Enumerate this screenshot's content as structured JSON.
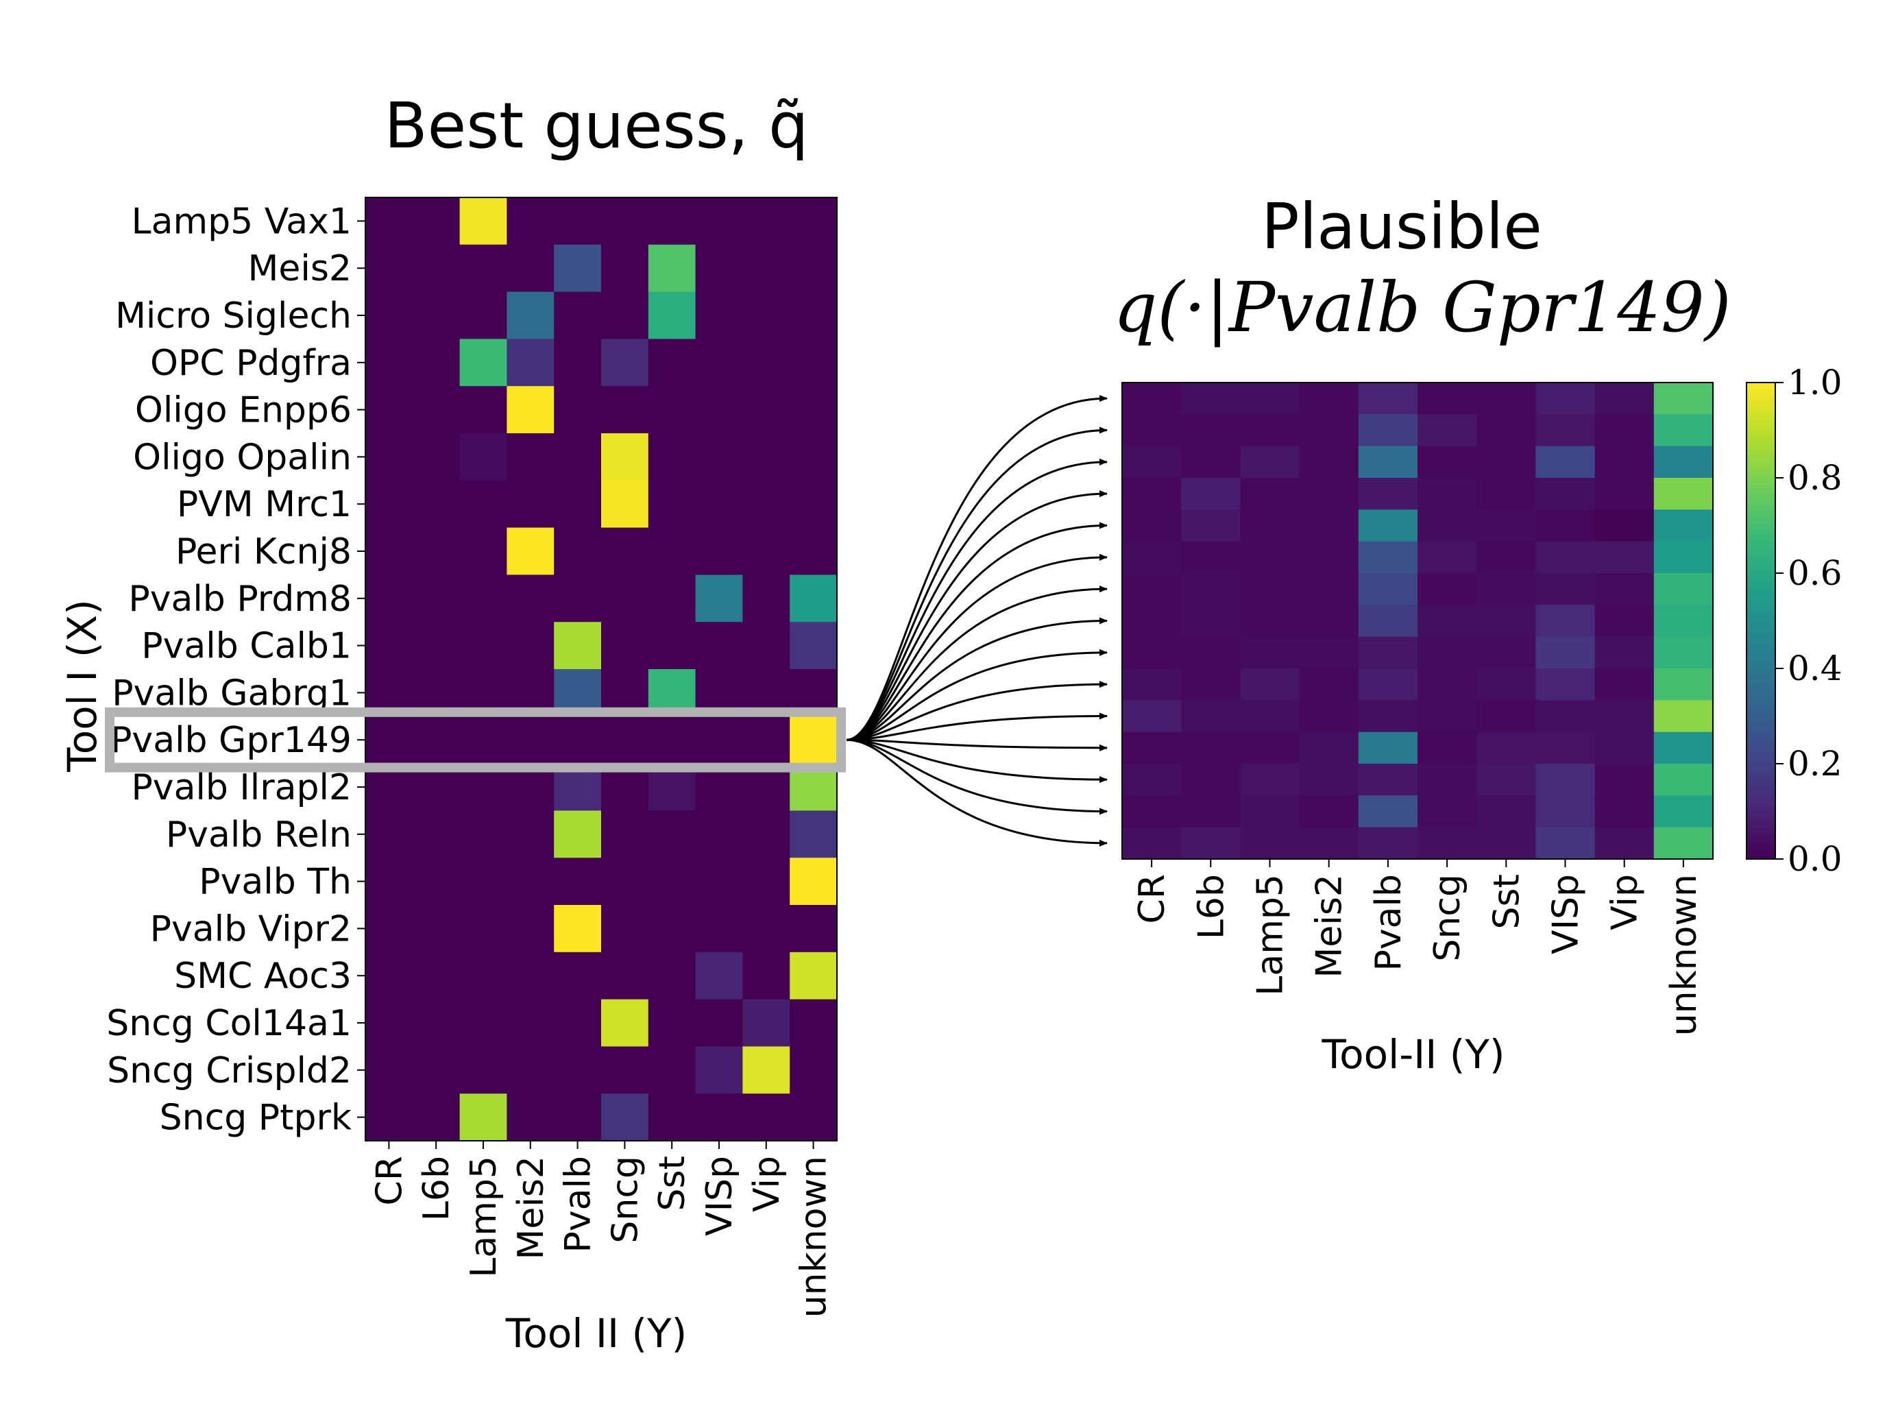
{
  "colors": {
    "viridis": [
      "#440154",
      "#482878",
      "#3e4989",
      "#31688e",
      "#26828e",
      "#1f9e89",
      "#35b779",
      "#6ece58",
      "#b5de2b",
      "#fde725"
    ],
    "highlight_box": "#b3b3b3",
    "arrow": "#000000"
  },
  "chart_data": [
    {
      "type": "heatmap",
      "title": "Best guess, q̃",
      "xlabel": "Tool II (Y)",
      "ylabel": "Tool I (X)",
      "x_categories": [
        "CR",
        "L6b",
        "Lamp5",
        "Meis2",
        "Pvalb",
        "Sncg",
        "Sst",
        "VISp",
        "Vip",
        "unknown"
      ],
      "y_categories": [
        "Lamp5 Vax1",
        "Meis2",
        "Micro Siglech",
        "OPC Pdgfra",
        "Oligo Enpp6",
        "Oligo Opalin",
        "PVM Mrc1",
        "Peri Kcnj8",
        "Pvalb Prdm8",
        "Pvalb Calb1",
        "Pvalb Gabrg1",
        "Pvalb Gpr149",
        "Pvalb Ilrapl2",
        "Pvalb Reln",
        "Pvalb Th",
        "Pvalb Vipr2",
        "SMC Aoc3",
        "Sncg Col14a1",
        "Sncg Crispld2",
        "Sncg Ptprk"
      ],
      "values": [
        [
          0,
          0,
          0.98,
          0,
          0,
          0,
          0,
          0,
          0,
          0
        ],
        [
          0,
          0,
          0,
          0,
          0.25,
          0,
          0.72,
          0,
          0,
          0
        ],
        [
          0,
          0,
          0,
          0.35,
          0,
          0,
          0.62,
          0,
          0,
          0
        ],
        [
          0,
          0,
          0.68,
          0.14,
          0,
          0.12,
          0,
          0,
          0,
          0
        ],
        [
          0,
          0,
          0,
          1.0,
          0,
          0,
          0,
          0,
          0,
          0
        ],
        [
          0,
          0,
          0.03,
          0,
          0,
          0.97,
          0,
          0,
          0,
          0
        ],
        [
          0,
          0,
          0,
          0,
          0,
          0.99,
          0,
          0,
          0,
          0
        ],
        [
          0,
          0,
          0,
          1.0,
          0,
          0,
          0,
          0,
          0,
          0
        ],
        [
          0,
          0,
          0,
          0,
          0,
          0,
          0,
          0.42,
          0,
          0.55
        ],
        [
          0,
          0,
          0,
          0,
          0.87,
          0,
          0,
          0,
          0,
          0.15
        ],
        [
          0,
          0,
          0,
          0,
          0.28,
          0,
          0.66,
          0,
          0,
          0
        ],
        [
          0,
          0,
          0,
          0,
          0,
          0,
          0,
          0,
          0,
          1.0
        ],
        [
          0,
          0,
          0,
          0,
          0.12,
          0,
          0.05,
          0,
          0,
          0.83
        ],
        [
          0,
          0,
          0,
          0,
          0.87,
          0,
          0,
          0,
          0,
          0.15
        ],
        [
          0,
          0,
          0,
          0,
          0,
          0,
          0,
          0,
          0,
          1.0
        ],
        [
          0,
          0,
          0,
          0,
          1.0,
          0,
          0,
          0,
          0,
          0
        ],
        [
          0,
          0,
          0,
          0,
          0,
          0,
          0,
          0.1,
          0,
          0.93
        ],
        [
          0,
          0,
          0,
          0,
          0,
          0.93,
          0,
          0,
          0.08,
          0
        ],
        [
          0,
          0,
          0,
          0,
          0,
          0,
          0,
          0.08,
          0.95,
          0
        ],
        [
          0,
          0,
          0.87,
          0,
          0,
          0.15,
          0,
          0,
          0,
          0
        ]
      ],
      "highlighted_row": "Pvalb Gpr149",
      "vmin": 0,
      "vmax": 1
    },
    {
      "type": "heatmap",
      "title_line1": "Plausible",
      "title_line2": "q(·|Pvalb Gpr149)",
      "xlabel": "Tool-II (Y)",
      "x_categories": [
        "CR",
        "L6b",
        "Lamp5",
        "Meis2",
        "Pvalb",
        "Sncg",
        "Sst",
        "VISp",
        "Vip",
        "unknown"
      ],
      "values": [
        [
          0.02,
          0.04,
          0.04,
          0.02,
          0.1,
          0.02,
          0.02,
          0.08,
          0.04,
          0.72
        ],
        [
          0.02,
          0.02,
          0.02,
          0.02,
          0.18,
          0.06,
          0.02,
          0.06,
          0.02,
          0.65
        ],
        [
          0.04,
          0.02,
          0.06,
          0.02,
          0.35,
          0.02,
          0.02,
          0.22,
          0.02,
          0.45
        ],
        [
          0.02,
          0.08,
          0.02,
          0.02,
          0.06,
          0.03,
          0.02,
          0.04,
          0.02,
          0.8
        ],
        [
          0.02,
          0.06,
          0.02,
          0.02,
          0.45,
          0.03,
          0.03,
          0.02,
          0.01,
          0.52
        ],
        [
          0.03,
          0.02,
          0.02,
          0.02,
          0.25,
          0.05,
          0.02,
          0.06,
          0.06,
          0.55
        ],
        [
          0.02,
          0.03,
          0.02,
          0.02,
          0.22,
          0.02,
          0.03,
          0.04,
          0.03,
          0.65
        ],
        [
          0.02,
          0.03,
          0.02,
          0.02,
          0.18,
          0.04,
          0.04,
          0.12,
          0.02,
          0.62
        ],
        [
          0.02,
          0.02,
          0.03,
          0.03,
          0.06,
          0.03,
          0.03,
          0.16,
          0.04,
          0.65
        ],
        [
          0.04,
          0.02,
          0.06,
          0.02,
          0.08,
          0.03,
          0.04,
          0.1,
          0.02,
          0.7
        ],
        [
          0.08,
          0.04,
          0.04,
          0.02,
          0.04,
          0.03,
          0.02,
          0.04,
          0.04,
          0.82
        ],
        [
          0.02,
          0.02,
          0.02,
          0.04,
          0.4,
          0.02,
          0.05,
          0.05,
          0.04,
          0.52
        ],
        [
          0.04,
          0.02,
          0.05,
          0.04,
          0.06,
          0.03,
          0.06,
          0.12,
          0.02,
          0.68
        ],
        [
          0.02,
          0.02,
          0.04,
          0.02,
          0.25,
          0.03,
          0.04,
          0.12,
          0.02,
          0.58
        ],
        [
          0.04,
          0.06,
          0.04,
          0.04,
          0.06,
          0.04,
          0.04,
          0.16,
          0.04,
          0.7
        ]
      ],
      "vmin": 0,
      "vmax": 1
    }
  ],
  "colorbar": {
    "ticks": [
      "0.0",
      "0.2",
      "0.4",
      "0.6",
      "0.8",
      "1.0"
    ],
    "tick_values": [
      0,
      0.2,
      0.4,
      0.6,
      0.8,
      1.0
    ]
  }
}
